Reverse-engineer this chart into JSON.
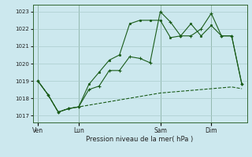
{
  "bg_color": "#cce8ee",
  "grid_color": "#aacccc",
  "line_color": "#1a5c1a",
  "ylabel_ticks": [
    1017,
    1018,
    1019,
    1020,
    1021,
    1022,
    1023
  ],
  "xlabel": "Pression niveau de la mer( hPa )",
  "day_labels": [
    "Ven",
    "Lun",
    "Sam",
    "Dim"
  ],
  "day_positions": [
    0,
    4,
    12,
    17
  ],
  "series1_x": [
    0,
    1,
    2,
    3,
    4,
    5,
    6,
    7,
    8,
    9,
    10,
    11,
    12,
    13,
    14,
    15,
    16,
    17,
    18,
    19,
    20
  ],
  "series1_y": [
    1019.0,
    1018.2,
    1017.2,
    1017.4,
    1017.5,
    1018.5,
    1018.7,
    1019.6,
    1019.6,
    1020.4,
    1020.3,
    1020.05,
    1023.0,
    1022.4,
    1021.6,
    1021.6,
    1022.0,
    1022.9,
    1021.6,
    1021.6,
    1018.8
  ],
  "series2_x": [
    0,
    1,
    2,
    3,
    4,
    5,
    6,
    7,
    8,
    9,
    10,
    11,
    12,
    13,
    14,
    15,
    16,
    17,
    18,
    19,
    20
  ],
  "series2_y": [
    1019.0,
    1018.2,
    1017.2,
    1017.4,
    1017.5,
    1018.8,
    1019.5,
    1020.2,
    1020.5,
    1022.3,
    1022.5,
    1022.5,
    1022.5,
    1021.5,
    1021.6,
    1022.3,
    1021.6,
    1022.2,
    1021.6,
    1021.6,
    1018.8
  ],
  "series3_x": [
    0,
    1,
    2,
    3,
    4,
    5,
    6,
    7,
    8,
    9,
    10,
    11,
    12,
    13,
    14,
    15,
    16,
    17,
    18,
    19,
    20
  ],
  "series3_y": [
    1019.0,
    1018.2,
    1017.2,
    1017.4,
    1017.5,
    1017.6,
    1017.7,
    1017.8,
    1017.9,
    1018.0,
    1018.1,
    1018.2,
    1018.3,
    1018.35,
    1018.4,
    1018.45,
    1018.5,
    1018.55,
    1018.6,
    1018.65,
    1018.55
  ],
  "ylim": [
    1016.6,
    1023.4
  ],
  "xlim": [
    -0.5,
    20.5
  ],
  "figsize": [
    3.2,
    2.0
  ],
  "dpi": 100
}
